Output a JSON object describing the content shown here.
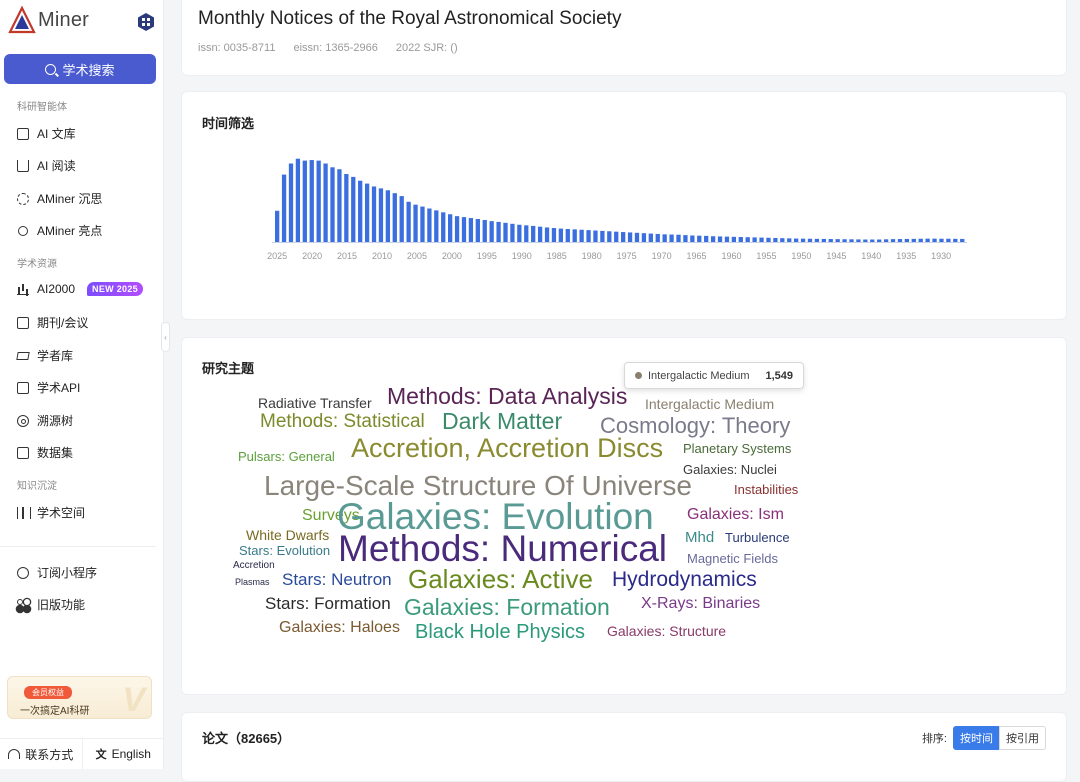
{
  "sidebar": {
    "logo_text": "Miner",
    "logo_letter": "A",
    "search_label": "学术搜索",
    "groups": [
      {
        "label": "科研智能体"
      },
      {
        "label": "学术资源"
      },
      {
        "label": "知识沉淀"
      }
    ],
    "items": [
      {
        "label": "AI 文库",
        "icon": "document-icon"
      },
      {
        "label": "AI 阅读",
        "icon": "book-icon"
      },
      {
        "label": "AMiner 沉思",
        "icon": "gear-icon"
      },
      {
        "label": "AMiner 亮点",
        "icon": "sun-icon"
      },
      {
        "label": "AI2000",
        "icon": "bar-chart-icon",
        "badge": "NEW 2025"
      },
      {
        "label": "期刊/会议",
        "icon": "journal-icon"
      },
      {
        "label": "学者库",
        "icon": "graduation-cap-icon"
      },
      {
        "label": "学术API",
        "icon": "api-icon"
      },
      {
        "label": "溯源树",
        "icon": "tree-icon"
      },
      {
        "label": "数据集",
        "icon": "dataset-icon"
      },
      {
        "label": "学术空间",
        "icon": "library-icon"
      },
      {
        "label": "订阅小程序",
        "icon": "compass-icon"
      },
      {
        "label": "旧版功能",
        "icon": "grid-icon"
      }
    ],
    "promo": {
      "tag": "会员权益",
      "text": "一次搞定AI科研"
    },
    "footer": {
      "contact": "联系方式",
      "language": "English"
    }
  },
  "header": {
    "title": "Monthly Notices of the Royal Astronomical Society",
    "issn": "issn: 0035-8711",
    "eissn": "eissn: 1365-2966",
    "sjr": "2022 SJR: ()"
  },
  "time_filter": {
    "title": "时间筛选",
    "chart_data": {
      "type": "bar",
      "x_axis_labels": [
        "2025",
        "2020",
        "2015",
        "2010",
        "2005",
        "2000",
        "1995",
        "1990",
        "1985",
        "1980",
        "1975",
        "1970",
        "1965",
        "1960",
        "1955",
        "1950",
        "1945",
        "1940",
        "1935",
        "1930"
      ],
      "x_start": 2025,
      "x_end": 1926,
      "values": [
        1630,
        3520,
        4100,
        4350,
        4250,
        4280,
        4250,
        4100,
        3900,
        3800,
        3550,
        3400,
        3200,
        3050,
        2900,
        2800,
        2700,
        2550,
        2397,
        2100,
        1950,
        1850,
        1750,
        1652,
        1550,
        1450,
        1350,
        1300,
        1250,
        1200,
        1150,
        1090,
        1050,
        1000,
        950,
        900,
        870,
        840,
        800,
        760,
        730,
        700,
        680,
        660,
        640,
        620,
        600,
        580,
        560,
        540,
        520,
        500,
        480,
        460,
        440,
        420,
        400,
        390,
        380,
        360,
        340,
        330,
        320,
        300,
        290,
        280,
        270,
        260,
        250,
        240,
        230,
        220,
        210,
        200,
        190,
        180,
        175,
        170,
        165,
        160,
        155,
        150,
        145,
        140,
        135,
        130,
        130,
        130,
        140,
        150,
        155,
        160,
        165,
        170,
        175,
        175,
        170,
        170,
        165,
        160
      ],
      "ylim": [
        0,
        4700
      ]
    }
  },
  "topics": {
    "title": "研究主题",
    "tooltip": {
      "label": "Intergalactic Medium",
      "value": "1,549"
    },
    "words": [
      {
        "text": "Radiative Transfer",
        "color": "#3a3a3a"
      },
      {
        "text": "Methods: Data Analysis",
        "color": "#5a2555"
      },
      {
        "text": "Intergalactic Medium",
        "color": "#8a7f6e"
      },
      {
        "text": "Methods: Statistical",
        "color": "#7d8a2a"
      },
      {
        "text": "Dark Matter",
        "color": "#3a8a6a"
      },
      {
        "text": "Cosmology: Theory",
        "color": "#7a7a8a"
      },
      {
        "text": "Pulsars: General",
        "color": "#5aa03a"
      },
      {
        "text": "Accretion, Accretion Discs",
        "color": "#8a8a30"
      },
      {
        "text": "Planetary Systems",
        "color": "#4a6a3a"
      },
      {
        "text": "Galaxies: Nuclei",
        "color": "#3a3a3a"
      },
      {
        "text": "Large-Scale Structure Of Universe",
        "color": "#8a857a"
      },
      {
        "text": "Instabilities",
        "color": "#8a3030"
      },
      {
        "text": "Surveys",
        "color": "#6aa030"
      },
      {
        "text": "Galaxies: Evolution",
        "color": "#5a9a95"
      },
      {
        "text": "Galaxies: Ism",
        "color": "#8a307a"
      },
      {
        "text": "White Dwarfs",
        "color": "#7a6a20"
      },
      {
        "text": "Stars: Evolution",
        "color": "#3a7a8a"
      },
      {
        "text": "Methods: Numerical",
        "color": "#4a2a7a"
      },
      {
        "text": "Mhd",
        "color": "#3a8a8a"
      },
      {
        "text": "Turbulence",
        "color": "#2a3a7a"
      },
      {
        "text": "Magnetic Fields",
        "color": "#6a6a9a"
      },
      {
        "text": "Accretion",
        "color": "#2a2a4a"
      },
      {
        "text": "Plasmas",
        "color": "#2a2a4a"
      },
      {
        "text": "Stars: Neutron",
        "color": "#2a4a9a"
      },
      {
        "text": "Galaxies: Active",
        "color": "#6a8a20"
      },
      {
        "text": "Hydrodynamics",
        "color": "#2a2a8a"
      },
      {
        "text": "Stars: Formation",
        "color": "#2a2a2a"
      },
      {
        "text": "Galaxies: Formation",
        "color": "#3a9a7a"
      },
      {
        "text": "X-Rays: Binaries",
        "color": "#7a3a8a"
      },
      {
        "text": "Galaxies: Haloes",
        "color": "#7a5a30"
      },
      {
        "text": "Black Hole Physics",
        "color": "#2a9a7a"
      },
      {
        "text": "Galaxies: Structure",
        "color": "#8a3a6a"
      }
    ]
  },
  "papers": {
    "title": "论文（82665）",
    "sort_label": "排序:",
    "sort_options": [
      "按时间",
      "按引用"
    ]
  }
}
